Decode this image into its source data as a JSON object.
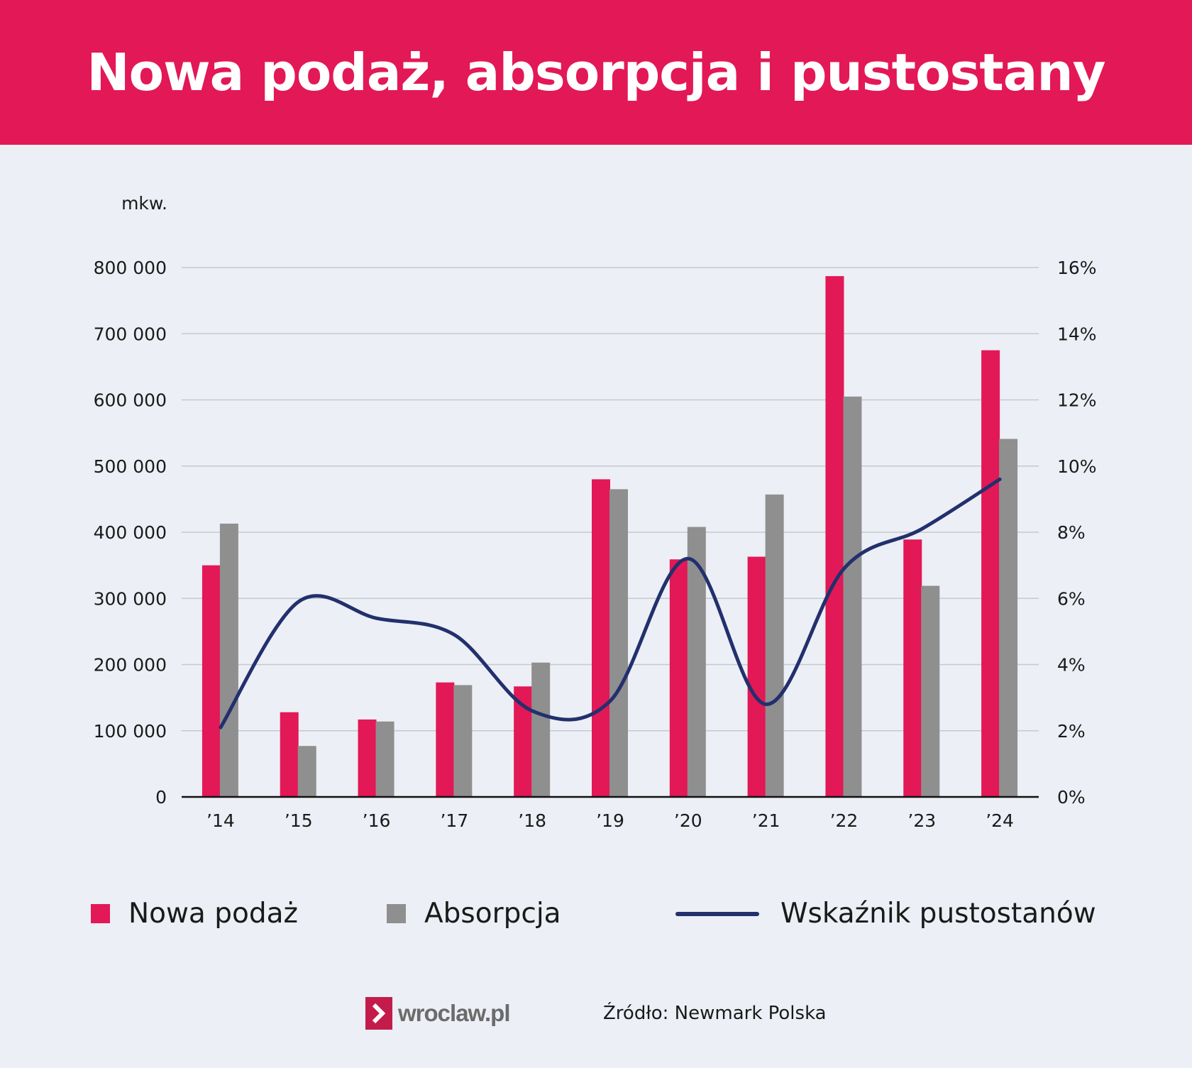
{
  "header": {
    "title": "Nowa podaż, absorpcja i pustostany"
  },
  "chart_data": {
    "type": "bar",
    "title": "Nowa podaż, absorpcja i pustostany",
    "ylabel": "mkw.",
    "categories": [
      "’14",
      "’15",
      "’16",
      "’17",
      "’18",
      "’19",
      "’20",
      "’21",
      "’22",
      "’23",
      "’24"
    ],
    "ylim": [
      0,
      800000
    ],
    "yticks": [
      "0",
      "100 000",
      "200 000",
      "300 000",
      "400 000",
      "500 000",
      "600 000",
      "700 000",
      "800 000"
    ],
    "y2lim": [
      0,
      16
    ],
    "y2ticks": [
      "0%",
      "2%",
      "4%",
      "6%",
      "8%",
      "10%",
      "12%",
      "14%",
      "16%"
    ],
    "grid": true,
    "legend_position": "bottom",
    "series": [
      {
        "name": "Nowa podaż",
        "type": "bar",
        "axis": "left",
        "color": "#e31856",
        "values": [
          350000,
          128000,
          117000,
          173000,
          167000,
          480000,
          359000,
          363000,
          787000,
          389000,
          675000
        ]
      },
      {
        "name": "Absorpcja",
        "type": "bar",
        "axis": "left",
        "color": "#8f8f8f",
        "values": [
          413000,
          77000,
          114000,
          169000,
          203000,
          465000,
          408000,
          457000,
          605000,
          319000,
          541000
        ]
      },
      {
        "name": "Wskaźnik pustostanów",
        "type": "line",
        "axis": "right",
        "color": "#22306d",
        "values": [
          2.1,
          5.9,
          5.4,
          4.9,
          2.6,
          2.9,
          7.2,
          2.8,
          6.9,
          8.1,
          9.6
        ]
      }
    ]
  },
  "legend": {
    "supply_label": "Nowa podaż",
    "absorption_label": "Absorpcja",
    "vacancy_label": "Wskaźnik pustostanów"
  },
  "footer": {
    "logo_text": "wroclaw.pl",
    "source": "Źródło: Newmark Polska"
  }
}
